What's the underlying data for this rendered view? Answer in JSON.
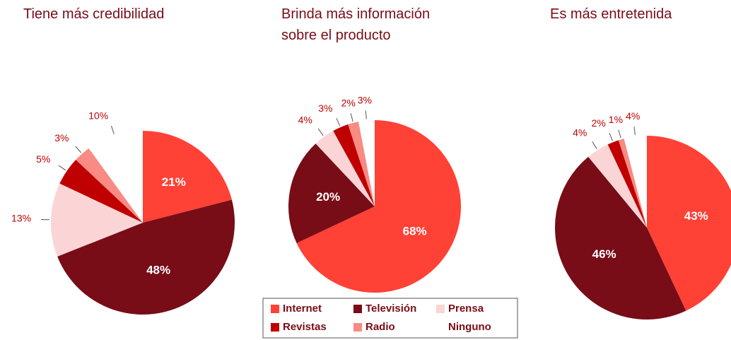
{
  "chart_data": [
    {
      "type": "pie",
      "title": "Tiene más credibilidad",
      "values": [
        21,
        48,
        13,
        5,
        3,
        10
      ],
      "value_labels": [
        "21%",
        "48%",
        "13%",
        "5%",
        "3%",
        "10%"
      ]
    },
    {
      "type": "pie",
      "title": "Brinda más información sobre el producto",
      "values": [
        68,
        20,
        4,
        3,
        2,
        3
      ],
      "value_labels": [
        "68%",
        "20%",
        "4%",
        "3%",
        "2%",
        "3%"
      ]
    },
    {
      "type": "pie",
      "title": "Es más entretenida",
      "values": [
        43,
        46,
        4,
        2,
        1,
        4
      ],
      "value_labels": [
        "43%",
        "46%",
        "4%",
        "2%",
        "1%",
        "4%"
      ]
    }
  ],
  "legend": {
    "categories": [
      "Internet",
      "Televisión",
      "Prensa",
      "Revistas",
      "Radio",
      "Ninguno"
    ],
    "colors": [
      "#ff4136",
      "#780c17",
      "#fbd5d5",
      "#c00000",
      "#f98a84",
      "#ffffff"
    ]
  }
}
